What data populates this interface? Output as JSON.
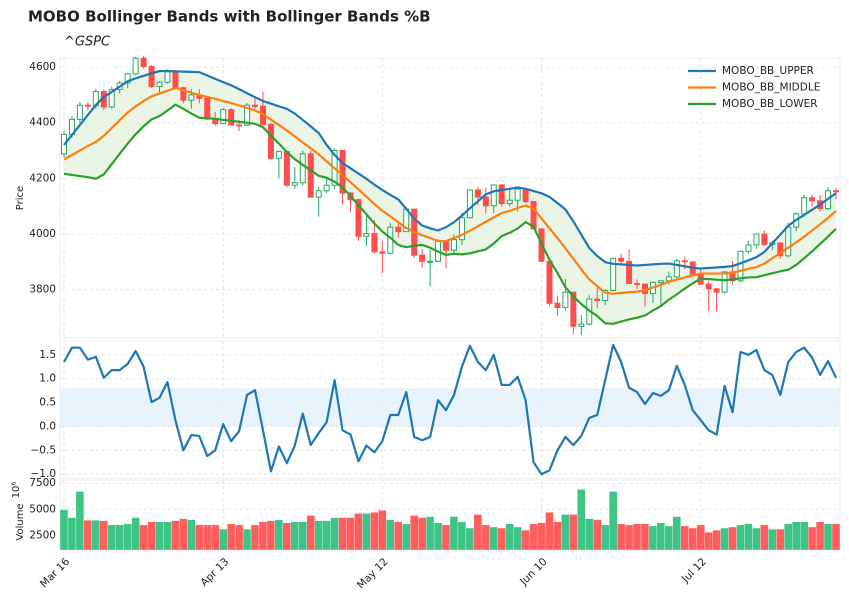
{
  "chart_data": [
    {
      "type": "candlestick",
      "title": "MOBO Bollinger Bands with Bollinger Bands %B",
      "subtitle": "^GSPC",
      "ylabel": "Price",
      "up_color": "#22ab5e",
      "down_color": "#ff4d4d",
      "band_fill": "#e6f2e0",
      "grid": true,
      "legend": "upper right",
      "ylim": [
        3625,
        4633
      ],
      "yticks": [
        3800,
        4000,
        4200,
        4400,
        4600
      ],
      "open": [
        4288,
        4358,
        4412,
        4463,
        4461,
        4512,
        4457,
        4520,
        4543,
        4576,
        4632,
        4602,
        4530,
        4546,
        4583,
        4526,
        4481,
        4500,
        4488,
        4413,
        4397,
        4447,
        4392,
        4391,
        4463,
        4459,
        4394,
        4272,
        4296,
        4175,
        4184,
        4288,
        4132,
        4155,
        4175,
        4300,
        4147,
        4123,
        3991,
        4001,
        3935,
        3930,
        4024,
        4008,
        4089,
        3923,
        3901,
        3901,
        3974,
        3941,
        3979,
        4058,
        4158,
        4132,
        4101,
        4176,
        4109,
        4121,
        4161,
        4116,
        4018,
        3901,
        3750,
        3735,
        3790,
        3667,
        3675,
        3765,
        3760,
        3796,
        3912,
        3901,
        3821,
        3819,
        3785,
        3825,
        3831,
        3845,
        3903,
        3899,
        3855,
        3819,
        3802,
        3790,
        3863,
        3831,
        3937,
        3960,
        3999,
        3962,
        3967,
        3921,
        4024,
        4072,
        4130,
        4119,
        4091,
        4155
      ],
      "high": [
        4370,
        4424,
        4475,
        4475,
        4522,
        4520,
        4530,
        4550,
        4580,
        4637,
        4640,
        4608,
        4550,
        4593,
        4590,
        4530,
        4521,
        4521,
        4490,
        4440,
        4453,
        4452,
        4410,
        4471,
        4488,
        4512,
        4400,
        4300,
        4300,
        4240,
        4300,
        4300,
        4170,
        4200,
        4308,
        4300,
        4150,
        4125,
        4070,
        4050,
        3975,
        4039,
        4047,
        4091,
        4089,
        3945,
        3943,
        3981,
        3975,
        3999,
        4075,
        4158,
        4168,
        4166,
        4177,
        4180,
        4168,
        4165,
        4164,
        4119,
        4018,
        3905,
        3778,
        3837,
        3790,
        3707,
        3779,
        3809,
        3802,
        3913,
        3928,
        3945,
        3836,
        3818,
        3829,
        3832,
        3864,
        3910,
        3919,
        3900,
        3873,
        3830,
        3805,
        3864,
        3902,
        3940,
        3975,
        4001,
        4012,
        3975,
        3970,
        4039,
        4078,
        4141,
        4140,
        4139,
        4168,
        4165
      ],
      "low": [
        4276,
        4346,
        4400,
        4444,
        4450,
        4445,
        4450,
        4505,
        4525,
        4570,
        4595,
        4525,
        4508,
        4540,
        4520,
        4470,
        4450,
        4470,
        4410,
        4390,
        4395,
        4390,
        4370,
        4388,
        4450,
        4390,
        4267,
        4200,
        4170,
        4162,
        4175,
        4130,
        4062,
        4145,
        4160,
        4106,
        4080,
        3975,
        3955,
        3928,
        3858,
        3925,
        3985,
        4008,
        3913,
        3876,
        3810,
        3900,
        3875,
        3925,
        3960,
        4057,
        4104,
        4073,
        4074,
        4098,
        4099,
        4080,
        4110,
        4017,
        3900,
        3740,
        3705,
        3723,
        3639,
        3636,
        3670,
        3733,
        3743,
        3796,
        3891,
        3820,
        3800,
        3738,
        3751,
        3743,
        3817,
        3839,
        3873,
        3847,
        3818,
        3722,
        3721,
        3785,
        3818,
        3825,
        3929,
        3946,
        3955,
        3941,
        3910,
        3915,
        4010,
        4060,
        4097,
        4080,
        4085,
        4124
      ],
      "close": [
        4358,
        4412,
        4463,
        4461,
        4512,
        4457,
        4520,
        4543,
        4576,
        4632,
        4602,
        4530,
        4546,
        4583,
        4526,
        4481,
        4500,
        4488,
        4413,
        4397,
        4447,
        4392,
        4391,
        4463,
        4459,
        4394,
        4272,
        4296,
        4175,
        4184,
        4288,
        4132,
        4155,
        4175,
        4300,
        4147,
        4123,
        3991,
        4001,
        3935,
        3930,
        4024,
        4008,
        4089,
        3923,
        3901,
        3901,
        3974,
        3941,
        3979,
        4058,
        4158,
        4132,
        4101,
        4176,
        4109,
        4121,
        4161,
        4116,
        4018,
        3901,
        3750,
        3735,
        3790,
        3667,
        3675,
        3765,
        3760,
        3796,
        3912,
        3901,
        3821,
        3819,
        3785,
        3825,
        3831,
        3845,
        3903,
        3899,
        3855,
        3819,
        3802,
        3790,
        3863,
        3831,
        3937,
        3960,
        3999,
        3962,
        3967,
        3921,
        4024,
        4072,
        4130,
        4119,
        4091,
        4155,
        4152
      ],
      "series": [
        {
          "name": "MOBO_BB_UPPER",
          "color": "#1f77b4",
          "values": [
            4320,
            4356,
            4392,
            4428,
            4464,
            4492,
            4511,
            4530,
            4549,
            4560,
            4569,
            4578,
            4586,
            4586,
            4585,
            4584,
            4583,
            4582,
            4570,
            4558,
            4546,
            4535,
            4521,
            4506,
            4492,
            4478,
            4469,
            4459,
            4450,
            4433,
            4410,
            4387,
            4363,
            4320,
            4284,
            4255,
            4236,
            4217,
            4198,
            4177,
            4158,
            4140,
            4124,
            4090,
            4055,
            4030,
            4020,
            4012,
            4024,
            4042,
            4066,
            4092,
            4117,
            4142,
            4153,
            4158,
            4162,
            4167,
            4162,
            4154,
            4146,
            4133,
            4111,
            4088,
            4045,
            3997,
            3949,
            3920,
            3898,
            3892,
            3890,
            3888,
            3886,
            3888,
            3890,
            3892,
            3893,
            3888,
            3883,
            3878,
            3875,
            3877,
            3879,
            3881,
            3884,
            3894,
            3905,
            3916,
            3935,
            3966,
            3997,
            4029,
            4050,
            4068,
            4087,
            4105,
            4126,
            4146
          ]
        },
        {
          "name": "MOBO_BB_MIDDLE",
          "color": "#ff7f0e",
          "values": [
            4268,
            4284,
            4300,
            4316,
            4331,
            4353,
            4381,
            4409,
            4437,
            4459,
            4478,
            4495,
            4505,
            4515,
            4525,
            4517,
            4508,
            4500,
            4493,
            4486,
            4478,
            4471,
            4462,
            4453,
            4444,
            4431,
            4411,
            4392,
            4372,
            4351,
            4329,
            4308,
            4286,
            4261,
            4236,
            4211,
            4186,
            4160,
            4134,
            4107,
            4083,
            4063,
            4042,
            4021,
            4006,
            3995,
            3985,
            3974,
            3974,
            3985,
            3996,
            4011,
            4027,
            4043,
            4059,
            4075,
            4083,
            4093,
            4102,
            4090,
            4055,
            4020,
            3985,
            3948,
            3910,
            3872,
            3836,
            3812,
            3788,
            3784,
            3787,
            3790,
            3792,
            3797,
            3807,
            3816,
            3828,
            3835,
            3843,
            3850,
            3857,
            3857,
            3857,
            3857,
            3860,
            3867,
            3874,
            3880,
            3893,
            3912,
            3931,
            3950,
            3969,
            3990,
            4012,
            4034,
            4058,
            4082
          ]
        },
        {
          "name": "MOBO_BB_LOWER",
          "color": "#2ca02c",
          "values": [
            4216,
            4212,
            4208,
            4204,
            4198,
            4214,
            4251,
            4288,
            4325,
            4358,
            4387,
            4412,
            4424,
            4444,
            4465,
            4450,
            4433,
            4418,
            4416,
            4414,
            4410,
            4407,
            4403,
            4400,
            4396,
            4384,
            4353,
            4325,
            4294,
            4269,
            4248,
            4229,
            4209,
            4202,
            4188,
            4167,
            4136,
            4103,
            4070,
            4037,
            4008,
            3986,
            3960,
            3952,
            3957,
            3960,
            3950,
            3936,
            3924,
            3928,
            3926,
            3930,
            3937,
            3944,
            3965,
            3992,
            4004,
            4019,
            4042,
            4026,
            3964,
            3907,
            3859,
            3808,
            3775,
            3747,
            3723,
            3704,
            3678,
            3676,
            3684,
            3692,
            3698,
            3706,
            3724,
            3740,
            3763,
            3782,
            3803,
            3822,
            3839,
            3837,
            3835,
            3833,
            3836,
            3840,
            3843,
            3844,
            3851,
            3858,
            3865,
            3871,
            3888,
            3912,
            3937,
            3963,
            3990,
            4018
          ]
        }
      ]
    },
    {
      "type": "line",
      "color": "#1f77b4",
      "shade": [
        0,
        0.8
      ],
      "shade_color": "#e4f1fa",
      "grid": true,
      "ylim": [
        -1.08,
        1.79
      ],
      "yticks": [
        {
          "value": -1,
          "label": "−1.0"
        },
        {
          "value": -0.5,
          "label": "−0.5"
        },
        {
          "value": 0,
          "label": "0.0"
        },
        {
          "value": 0.5,
          "label": "0.5"
        },
        {
          "value": 1,
          "label": "1.0"
        },
        {
          "value": 1.5,
          "label": "1.5"
        }
      ],
      "values": [
        1.35,
        1.65,
        1.65,
        1.4,
        1.46,
        1.02,
        1.18,
        1.18,
        1.31,
        1.58,
        1.25,
        0.51,
        0.6,
        0.93,
        0.13,
        -0.5,
        -0.18,
        -0.2,
        -0.62,
        -0.5,
        0.05,
        -0.31,
        -0.1,
        0.66,
        0.76,
        -0.08,
        -0.94,
        -0.42,
        -0.77,
        -0.4,
        0.27,
        -0.39,
        -0.14,
        0.09,
        0.97,
        -0.08,
        -0.17,
        -0.73,
        -0.4,
        -0.54,
        -0.31,
        0.24,
        0.24,
        0.72,
        -0.22,
        -0.29,
        -0.22,
        0.55,
        0.34,
        0.66,
        1.25,
        1.69,
        1.35,
        1.18,
        1.5,
        0.87,
        0.87,
        1.04,
        0.55,
        -0.75,
        -1.0,
        -0.92,
        -0.5,
        -0.22,
        -0.39,
        -0.2,
        0.18,
        0.24,
        0.97,
        1.71,
        1.35,
        0.81,
        0.72,
        0.47,
        0.7,
        0.64,
        0.76,
        1.27,
        0.87,
        0.34,
        0.13,
        -0.08,
        -0.17,
        0.85,
        0.3,
        1.56,
        1.5,
        1.6,
        1.18,
        1.08,
        0.66,
        1.35,
        1.56,
        1.65,
        1.44,
        1.08,
        1.37,
        1.02
      ]
    },
    {
      "type": "bar",
      "ylabel": "Volume",
      "y_multiplier": "10⁶",
      "up_color": "#3ec486",
      "down_color": "#ff5e5e",
      "grid": true,
      "ylim": [
        1100,
        7800
      ],
      "yticks": [
        2500,
        5000,
        7500
      ],
      "categories": [
        "Mar 16",
        null,
        null,
        null,
        null,
        null,
        null,
        null,
        null,
        null,
        null,
        null,
        null,
        null,
        null,
        null,
        null,
        null,
        null,
        null,
        "Apr 13",
        null,
        null,
        null,
        null,
        null,
        null,
        null,
        null,
        null,
        null,
        null,
        null,
        null,
        null,
        null,
        null,
        null,
        null,
        null,
        "May 12",
        null,
        null,
        null,
        null,
        null,
        null,
        null,
        null,
        null,
        null,
        null,
        null,
        null,
        null,
        null,
        null,
        null,
        null,
        null,
        "Jun 10",
        null,
        null,
        null,
        null,
        null,
        null,
        null,
        null,
        null,
        null,
        null,
        null,
        null,
        null,
        null,
        null,
        null,
        null,
        null,
        "Jul 12",
        null,
        null,
        null,
        null,
        null,
        null,
        null,
        null,
        null,
        null,
        null,
        null,
        null,
        null,
        null,
        null,
        null
      ],
      "values": [
        4950,
        4200,
        6700,
        3950,
        3950,
        3900,
        3500,
        3500,
        3600,
        4200,
        3500,
        3800,
        3800,
        3800,
        3900,
        4100,
        4000,
        3500,
        3500,
        3500,
        3100,
        3600,
        3500,
        3100,
        3500,
        3800,
        3900,
        4000,
        3700,
        3800,
        3800,
        4400,
        3900,
        3900,
        4200,
        4200,
        4200,
        4600,
        4600,
        4700,
        4900,
        4000,
        3800,
        3600,
        4400,
        4200,
        4300,
        3700,
        3500,
        4300,
        3800,
        3200,
        4500,
        3500,
        3300,
        3200,
        3600,
        3300,
        3000,
        3600,
        3700,
        4700,
        3800,
        4500,
        4500,
        6900,
        4100,
        4000,
        3500,
        6700,
        3600,
        3500,
        3600,
        3600,
        3400,
        3700,
        3400,
        4300,
        3400,
        3200,
        3500,
        2800,
        3000,
        3200,
        3300,
        3500,
        3600,
        3200,
        3500,
        3100,
        3100,
        3600,
        3800,
        3800,
        3300,
        3800,
        3600,
        3600
      ]
    }
  ]
}
